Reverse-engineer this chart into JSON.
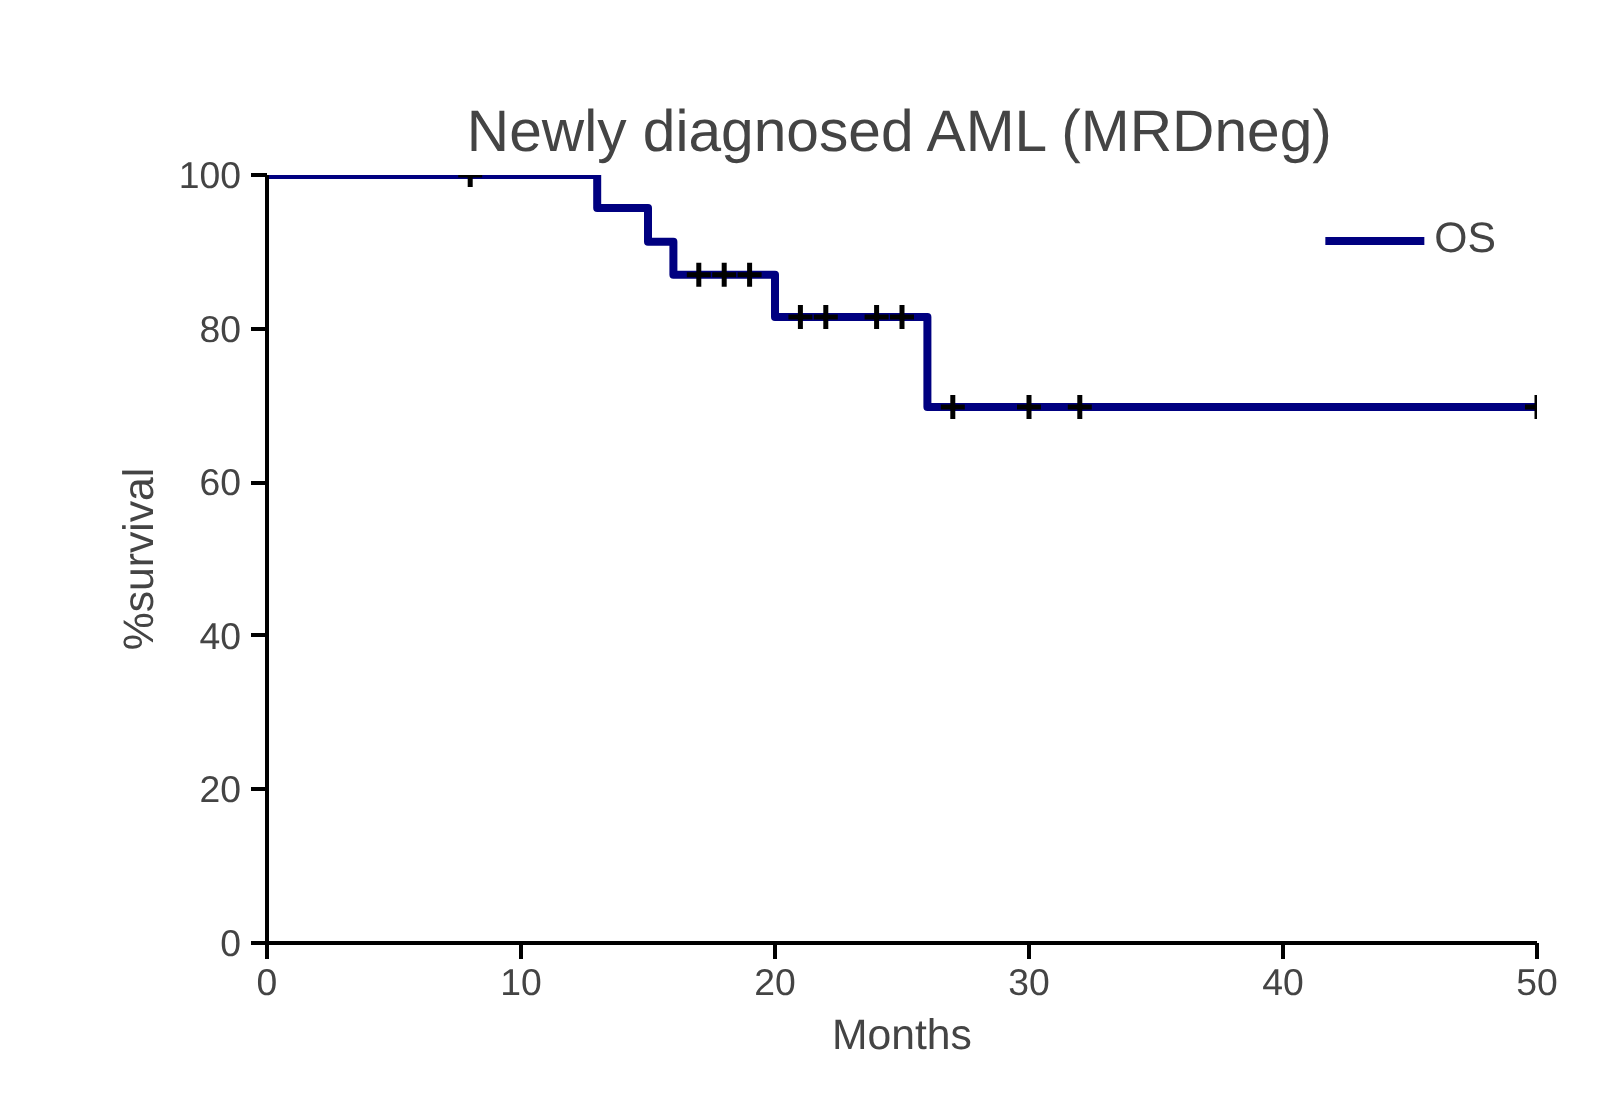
{
  "chart_data": {
    "type": "step",
    "title": "Newly diagnosed AML (MRDneg)",
    "xlabel": "Months",
    "ylabel": "%survival",
    "xlim": [
      0,
      50
    ],
    "ylim": [
      0,
      100
    ],
    "xticks": [
      0,
      10,
      20,
      30,
      40,
      50
    ],
    "yticks": [
      0,
      20,
      40,
      60,
      80,
      100
    ],
    "grid": false,
    "legend": "top right",
    "series": [
      {
        "name": "OS",
        "color": "#000080",
        "x": [
          0,
          13,
          15,
          16,
          20,
          26,
          50
        ],
        "values": [
          100,
          95.7,
          91.3,
          87,
          81.5,
          69.8,
          69.8
        ]
      },
      {
        "type": "scatter",
        "marker": "cross",
        "color": "#000000",
        "x": [
          8,
          17,
          18,
          19,
          21,
          22,
          24,
          25,
          27,
          30,
          32,
          50
        ],
        "values": [
          100,
          87,
          87,
          87,
          81.5,
          81.5,
          81.5,
          81.5,
          69.8,
          69.8,
          69.8,
          69.8
        ]
      }
    ]
  }
}
